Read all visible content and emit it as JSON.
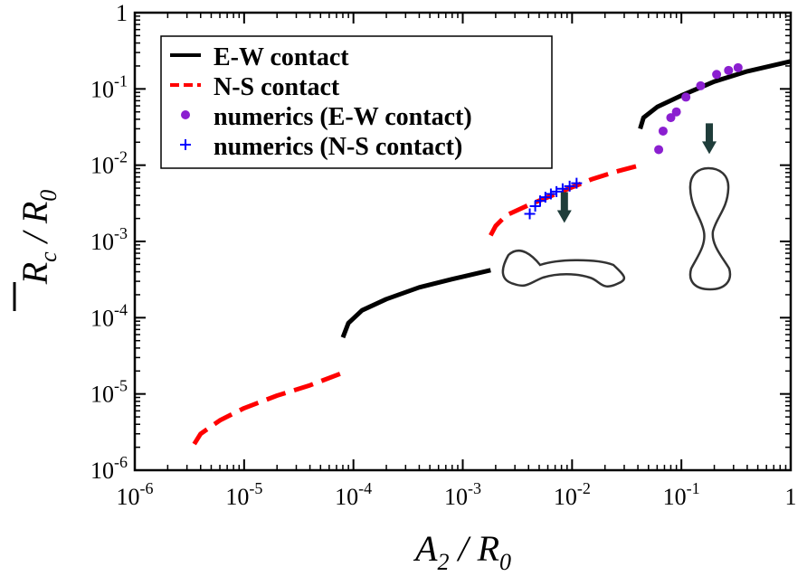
{
  "chart_data": {
    "type": "line",
    "title": "",
    "xscale": "log",
    "yscale": "log",
    "xlim": [
      1e-06,
      1
    ],
    "ylim": [
      1e-06,
      1
    ],
    "xlabel": {
      "main": "A",
      "sub": "2",
      "sep": " / ",
      "den": "R",
      "den_sub": "0"
    },
    "ylabel": {
      "main": "R",
      "sub": "c",
      "sep": " / ",
      "den": "R",
      "den_sub": "0",
      "overline": true
    },
    "xticks": [
      {
        "value": 1e-06,
        "base": "10",
        "exp": "-6"
      },
      {
        "value": 1e-05,
        "base": "10",
        "exp": "-5"
      },
      {
        "value": 0.0001,
        "base": "10",
        "exp": "-4"
      },
      {
        "value": 0.001,
        "base": "10",
        "exp": "-3"
      },
      {
        "value": 0.01,
        "base": "10",
        "exp": "-2"
      },
      {
        "value": 0.1,
        "base": "10",
        "exp": "-1"
      },
      {
        "value": 1,
        "base": "1",
        "exp": ""
      }
    ],
    "yticks": [
      {
        "value": 1e-06,
        "base": "10",
        "exp": "-6"
      },
      {
        "value": 1e-05,
        "base": "10",
        "exp": "-5"
      },
      {
        "value": 0.0001,
        "base": "10",
        "exp": "-4"
      },
      {
        "value": 0.001,
        "base": "10",
        "exp": "-3"
      },
      {
        "value": 0.01,
        "base": "10",
        "exp": "-2"
      },
      {
        "value": 0.1,
        "base": "10",
        "exp": "-1"
      },
      {
        "value": 1,
        "base": "1",
        "exp": ""
      }
    ],
    "legend_position": "top-left",
    "series": [
      {
        "name": "E-W contact",
        "style": "solid",
        "color": "#000000",
        "segments": [
          [
            [
              8e-05,
              5.5e-05
            ],
            [
              9e-05,
              8.5e-05
            ],
            [
              0.00012,
              0.000125
            ],
            [
              0.0002,
              0.000175
            ],
            [
              0.0004,
              0.00025
            ],
            [
              0.0008,
              0.00032
            ],
            [
              0.0018,
              0.00042
            ]
          ],
          [
            [
              0.042,
              0.03
            ],
            [
              0.045,
              0.042
            ],
            [
              0.06,
              0.058
            ],
            [
              0.1,
              0.082
            ],
            [
              0.2,
              0.125
            ],
            [
              0.4,
              0.17
            ],
            [
              1.0,
              0.23
            ]
          ]
        ]
      },
      {
        "name": "N-S contact",
        "style": "dashed",
        "color": "#ff0000",
        "segments": [
          [
            [
              3.5e-06,
              2.2e-06
            ],
            [
              4e-06,
              3e-06
            ],
            [
              6e-06,
              4.5e-06
            ],
            [
              1e-05,
              6.5e-06
            ],
            [
              2e-05,
              9.5e-06
            ],
            [
              4e-05,
              1.3e-05
            ],
            [
              8e-05,
              1.9e-05
            ]
          ],
          [
            [
              0.0018,
              0.0012
            ],
            [
              0.002,
              0.0016
            ],
            [
              0.0025,
              0.0022
            ],
            [
              0.004,
              0.003
            ],
            [
              0.008,
              0.0045
            ],
            [
              0.015,
              0.0065
            ],
            [
              0.025,
              0.0082
            ],
            [
              0.042,
              0.01
            ]
          ]
        ]
      },
      {
        "name": "numerics (E-W contact)",
        "style": "markers-circle",
        "color": "#8b1fd0",
        "points": [
          [
            0.062,
            0.016
          ],
          [
            0.068,
            0.028
          ],
          [
            0.08,
            0.042
          ],
          [
            0.09,
            0.05
          ],
          [
            0.11,
            0.078
          ],
          [
            0.15,
            0.11
          ],
          [
            0.21,
            0.155
          ],
          [
            0.27,
            0.175
          ],
          [
            0.33,
            0.19
          ]
        ]
      },
      {
        "name": "numerics (N-S contact)",
        "style": "markers-plus",
        "color": "#0000ff",
        "points": [
          [
            0.0041,
            0.0023
          ],
          [
            0.0046,
            0.0029
          ],
          [
            0.0051,
            0.0034
          ],
          [
            0.0057,
            0.0038
          ],
          [
            0.0064,
            0.0042
          ],
          [
            0.0072,
            0.0045
          ],
          [
            0.0082,
            0.0049
          ],
          [
            0.0095,
            0.0053
          ],
          [
            0.011,
            0.0058
          ]
        ]
      }
    ],
    "annotations": [
      {
        "type": "arrow",
        "direction": "down",
        "color": "#1f3d3a",
        "x": 0.0085,
        "y": 0.00175
      },
      {
        "type": "arrow",
        "direction": "down",
        "color": "#1f3d3a",
        "x": 0.18,
        "y": 0.014
      },
      {
        "type": "shape",
        "shape": "horizontal-dumbbell",
        "x": 0.0085,
        "y": 0.00038
      },
      {
        "type": "shape",
        "shape": "vertical-dumbbell",
        "x": 0.19,
        "y": 0.0012
      }
    ]
  }
}
